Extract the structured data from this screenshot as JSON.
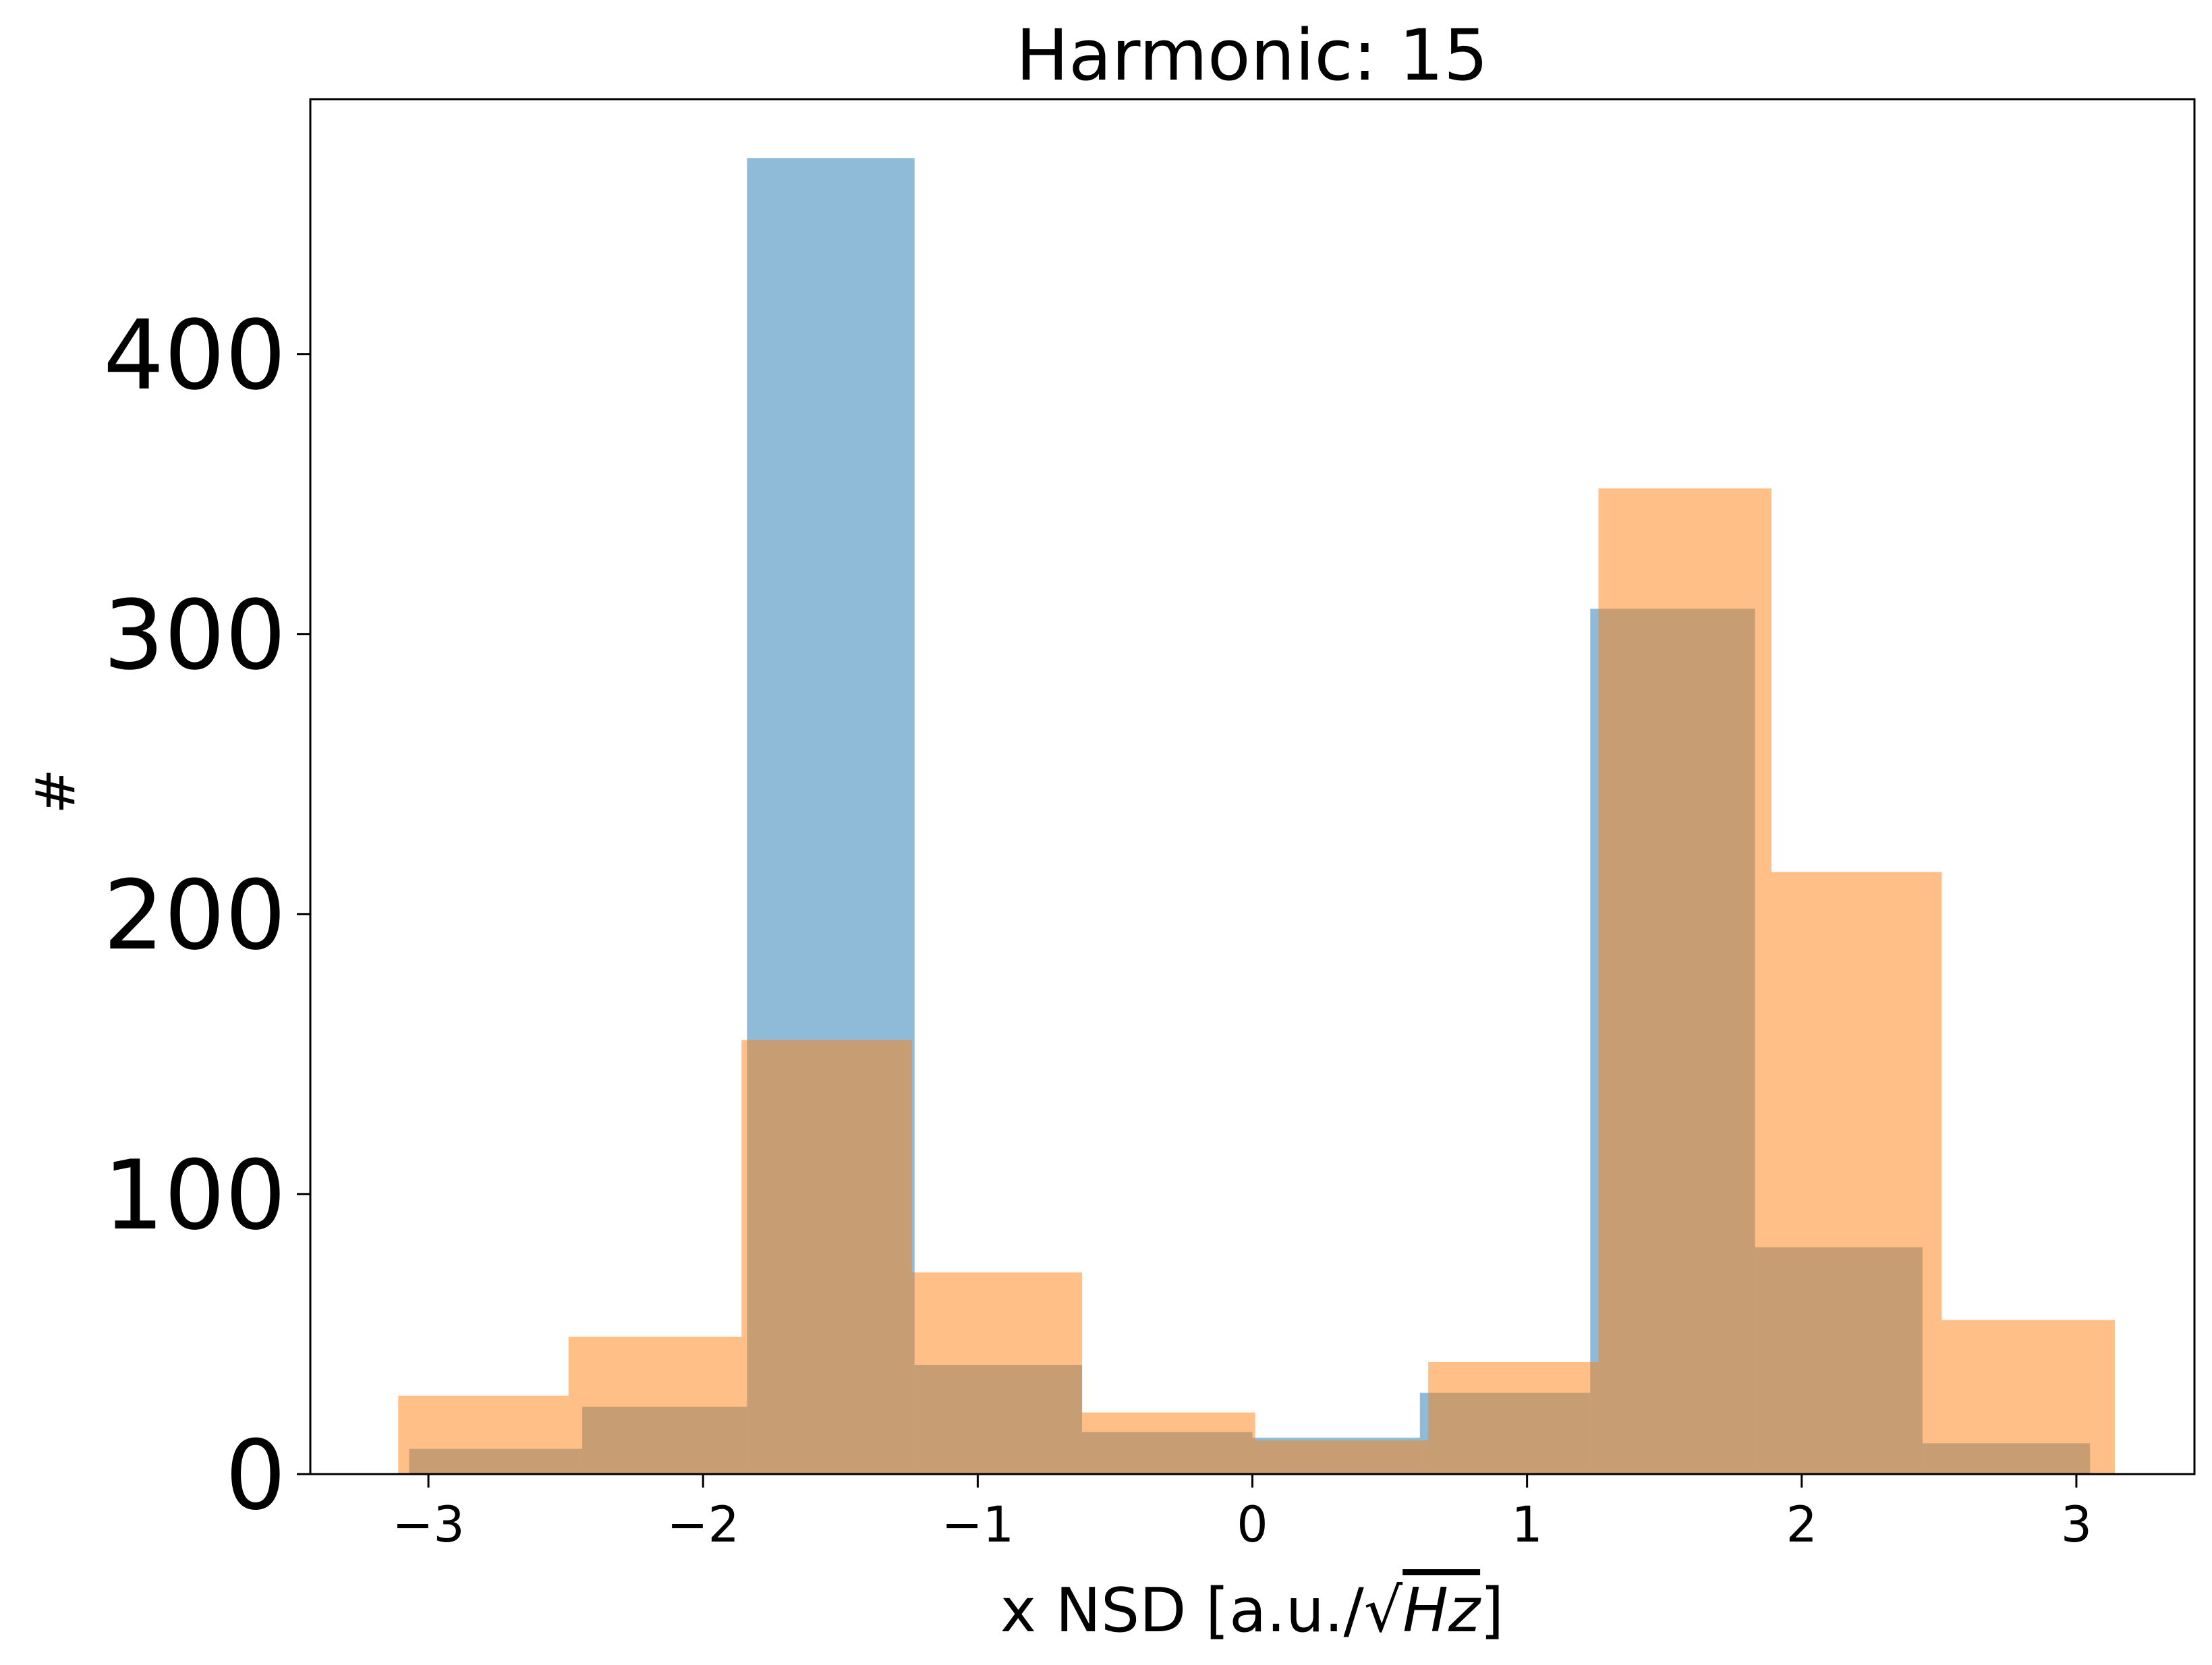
{
  "chart_data": {
    "type": "bar",
    "title": "Harmonic: 15",
    "xlabel_prefix": "x NSD [a.u./",
    "xlabel_radicand": "Hz",
    "xlabel_suffix": "]",
    "ylabel": "#",
    "xlim": [
      -3.43,
      3.43
    ],
    "ylim": [
      0,
      491
    ],
    "xticks": [
      -3,
      -2,
      -1,
      0,
      1,
      2,
      3
    ],
    "xtick_labels": [
      "−3",
      "−2",
      "−1",
      "0",
      "1",
      "2",
      "3"
    ],
    "yticks": [
      0,
      100,
      200,
      300,
      400
    ],
    "ytick_labels": [
      "0",
      "100",
      "200",
      "300",
      "400"
    ],
    "grid": false,
    "legend": "none",
    "series": [
      {
        "color": "#1f77b4",
        "opacity": 0.5,
        "bins": [
          {
            "x0": -3.07,
            "x1": -2.44,
            "count": 9
          },
          {
            "x0": -2.44,
            "x1": -1.84,
            "count": 24
          },
          {
            "x0": -1.84,
            "x1": -1.23,
            "count": 470
          },
          {
            "x0": -1.23,
            "x1": -0.62,
            "count": 39
          },
          {
            "x0": -0.62,
            "x1": 0.0,
            "count": 15
          },
          {
            "x0": 0.0,
            "x1": 0.61,
            "count": 13
          },
          {
            "x0": 0.61,
            "x1": 1.23,
            "count": 29
          },
          {
            "x0": 1.23,
            "x1": 1.83,
            "count": 309
          },
          {
            "x0": 1.83,
            "x1": 2.44,
            "count": 81
          },
          {
            "x0": 2.44,
            "x1": 3.05,
            "count": 11
          }
        ]
      },
      {
        "color": "#ff7f0e",
        "opacity": 0.5,
        "bins": [
          {
            "x0": -3.11,
            "x1": -2.49,
            "count": 28
          },
          {
            "x0": -2.49,
            "x1": -1.86,
            "count": 49
          },
          {
            "x0": -1.86,
            "x1": -1.24,
            "count": 155
          },
          {
            "x0": -1.24,
            "x1": -0.62,
            "count": 72
          },
          {
            "x0": -0.62,
            "x1": 0.01,
            "count": 22
          },
          {
            "x0": 0.01,
            "x1": 0.64,
            "count": 12
          },
          {
            "x0": 0.64,
            "x1": 1.26,
            "count": 40
          },
          {
            "x0": 1.26,
            "x1": 1.89,
            "count": 352
          },
          {
            "x0": 1.89,
            "x1": 2.51,
            "count": 215
          },
          {
            "x0": 2.51,
            "x1": 3.14,
            "count": 55
          }
        ]
      }
    ]
  }
}
